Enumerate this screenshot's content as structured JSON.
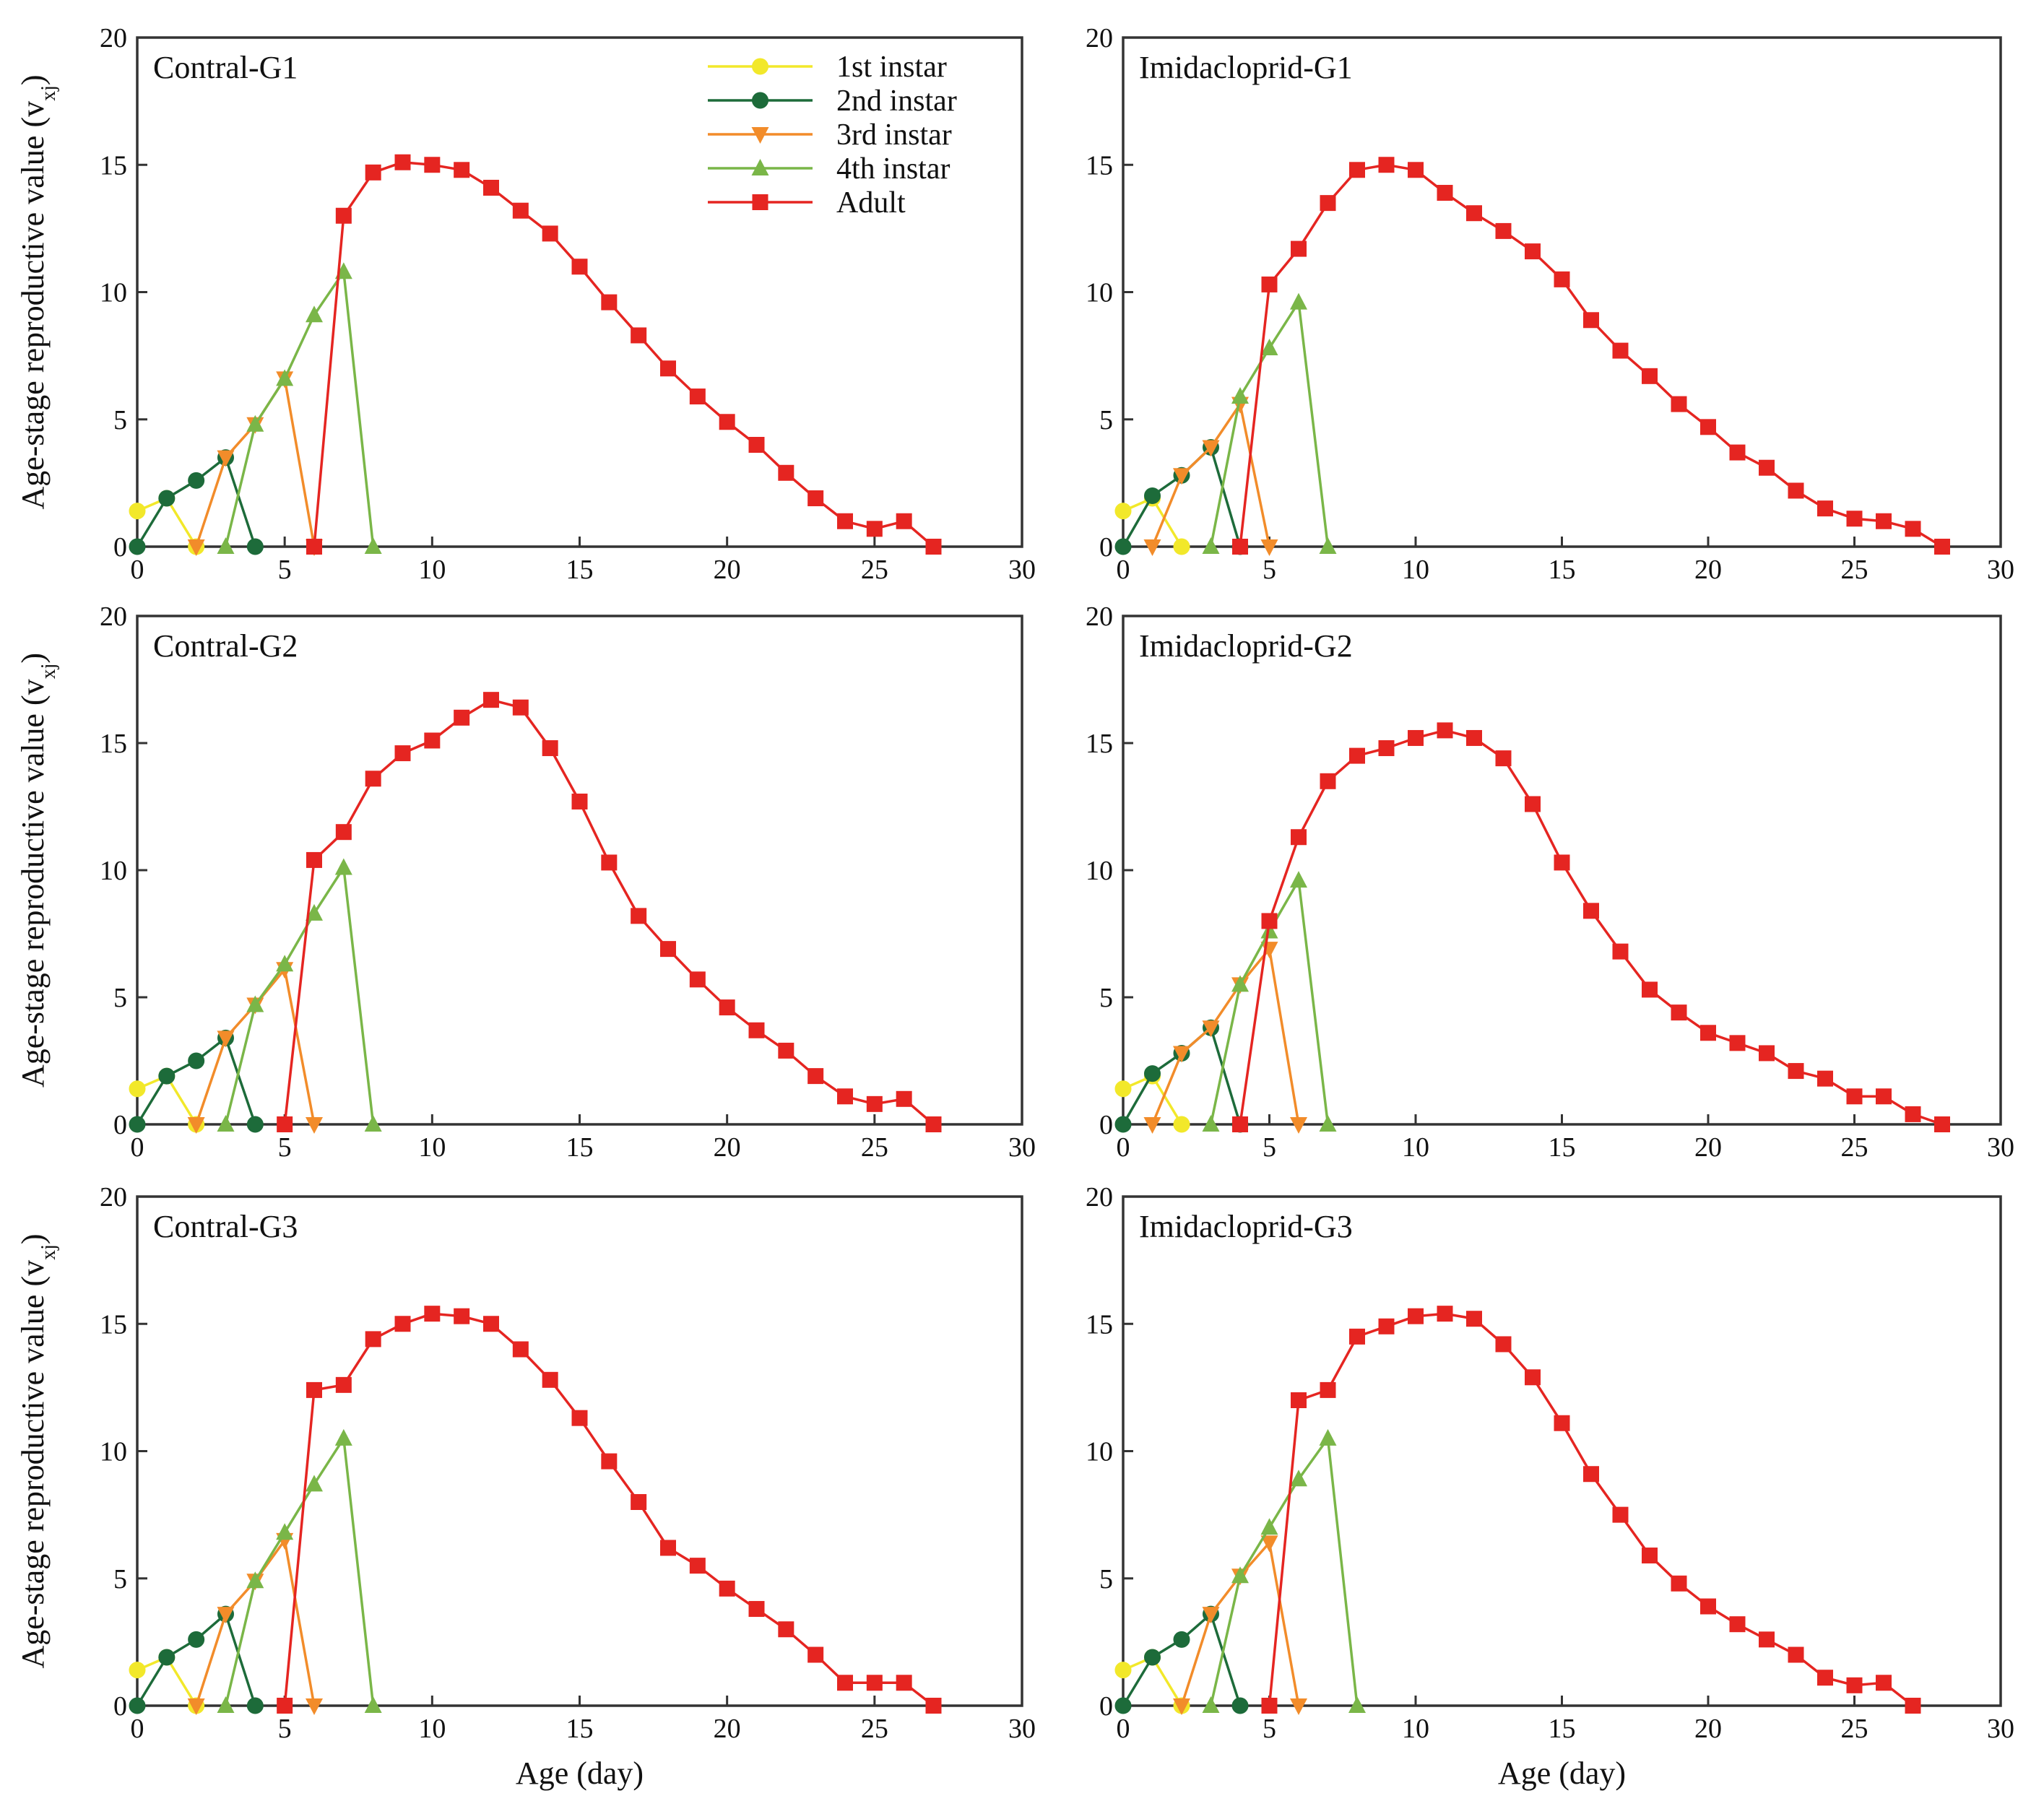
{
  "chart_data": {
    "type": "line",
    "ylabel": "Age-stage reproductive value (v",
    "ylabel_sub": "xj",
    "ylabel_close": ")",
    "xlabel": "Age (day)",
    "xlim": [
      0,
      30
    ],
    "ylim": [
      0,
      20
    ],
    "xticks": [
      0,
      5,
      10,
      15,
      20,
      25,
      30
    ],
    "yticks": [
      0,
      5,
      10,
      15,
      20
    ],
    "legend": {
      "position": "top-left",
      "entries": [
        {
          "label": "1st instar",
          "color": "#f2e82a",
          "marker": "circle"
        },
        {
          "label": "2nd instar",
          "color": "#1d6b3a",
          "marker": "circle"
        },
        {
          "label": "3rd instar",
          "color": "#f28c2a",
          "marker": "triangle-down"
        },
        {
          "label": "4th instar",
          "color": "#7ab648",
          "marker": "triangle-up"
        },
        {
          "label": "Adult",
          "color": "#e52521",
          "marker": "square"
        }
      ]
    },
    "panels": [
      {
        "title": "Contral-G1",
        "series": [
          {
            "name": "1st instar",
            "x": [
              0,
              1,
              2
            ],
            "y": [
              1.4,
              1.9,
              0
            ]
          },
          {
            "name": "2nd instar",
            "x": [
              0,
              1,
              2,
              3,
              4
            ],
            "y": [
              0,
              1.9,
              2.6,
              3.5,
              0
            ]
          },
          {
            "name": "3rd instar",
            "x": [
              2,
              3,
              4,
              5,
              6
            ],
            "y": [
              0,
              3.5,
              4.8,
              6.6,
              0
            ]
          },
          {
            "name": "4th instar",
            "x": [
              3,
              4,
              5,
              6,
              7,
              8
            ],
            "y": [
              0,
              4.8,
              6.6,
              9.1,
              10.8,
              0
            ]
          },
          {
            "name": "Adult",
            "x": [
              6,
              7,
              8,
              9,
              10,
              11,
              12,
              13,
              14,
              15,
              16,
              17,
              18,
              19,
              20,
              21,
              22,
              23,
              24,
              25,
              26,
              27
            ],
            "y": [
              0,
              13.0,
              14.7,
              15.1,
              15.0,
              14.8,
              14.1,
              13.2,
              12.3,
              11.0,
              9.6,
              8.3,
              7.0,
              5.9,
              4.9,
              4.0,
              2.9,
              1.9,
              1.0,
              0.7,
              1.0,
              0
            ]
          }
        ]
      },
      {
        "title": "Imidacloprid-G1",
        "series": [
          {
            "name": "1st instar",
            "x": [
              0,
              1,
              2
            ],
            "y": [
              1.4,
              1.9,
              0
            ]
          },
          {
            "name": "2nd instar",
            "x": [
              0,
              1,
              2,
              3,
              4
            ],
            "y": [
              0,
              2.0,
              2.8,
              3.9,
              0
            ]
          },
          {
            "name": "3rd instar",
            "x": [
              1,
              2,
              3,
              4,
              5
            ],
            "y": [
              0,
              2.8,
              3.9,
              5.6,
              0
            ]
          },
          {
            "name": "4th instar",
            "x": [
              3,
              4,
              5,
              6,
              7
            ],
            "y": [
              0,
              5.9,
              7.8,
              9.6,
              0
            ]
          },
          {
            "name": "Adult",
            "x": [
              4,
              5,
              6,
              7,
              8,
              9,
              10,
              11,
              12,
              13,
              14,
              15,
              16,
              17,
              18,
              19,
              20,
              21,
              22,
              23,
              24,
              25,
              26,
              27,
              28
            ],
            "y": [
              0,
              10.3,
              11.7,
              13.5,
              14.8,
              15.0,
              14.8,
              13.9,
              13.1,
              12.4,
              11.6,
              10.5,
              8.9,
              7.7,
              6.7,
              5.6,
              4.7,
              3.7,
              3.1,
              2.2,
              1.5,
              1.1,
              1.0,
              0.7,
              0
            ]
          }
        ]
      },
      {
        "title": "Contral-G2",
        "series": [
          {
            "name": "1st instar",
            "x": [
              0,
              1,
              2
            ],
            "y": [
              1.4,
              1.9,
              0
            ]
          },
          {
            "name": "2nd instar",
            "x": [
              0,
              1,
              2,
              3,
              4
            ],
            "y": [
              0,
              1.9,
              2.5,
              3.4,
              0
            ]
          },
          {
            "name": "3rd instar",
            "x": [
              2,
              3,
              4,
              5,
              6
            ],
            "y": [
              0,
              3.4,
              4.7,
              6.1,
              0
            ]
          },
          {
            "name": "4th instar",
            "x": [
              3,
              4,
              5,
              6,
              7,
              8
            ],
            "y": [
              0,
              4.7,
              6.3,
              8.3,
              10.1,
              0
            ]
          },
          {
            "name": "Adult",
            "x": [
              5,
              6,
              7,
              8,
              9,
              10,
              11,
              12,
              13,
              14,
              15,
              16,
              17,
              18,
              19,
              20,
              21,
              22,
              23,
              24,
              25,
              26,
              27
            ],
            "y": [
              0,
              10.4,
              11.5,
              13.6,
              14.6,
              15.1,
              16.0,
              16.7,
              16.4,
              14.8,
              12.7,
              10.3,
              8.2,
              6.9,
              5.7,
              4.6,
              3.7,
              2.9,
              1.9,
              1.1,
              0.8,
              1.0,
              0
            ]
          }
        ]
      },
      {
        "title": "Imidacloprid-G2",
        "series": [
          {
            "name": "1st instar",
            "x": [
              0,
              1,
              2
            ],
            "y": [
              1.4,
              1.9,
              0
            ]
          },
          {
            "name": "2nd instar",
            "x": [
              0,
              1,
              2,
              3,
              4
            ],
            "y": [
              0,
              2.0,
              2.8,
              3.8,
              0
            ]
          },
          {
            "name": "3rd instar",
            "x": [
              1,
              2,
              3,
              4,
              5,
              6
            ],
            "y": [
              0,
              2.8,
              3.8,
              5.5,
              6.9,
              0
            ]
          },
          {
            "name": "4th instar",
            "x": [
              3,
              4,
              5,
              6,
              7
            ],
            "y": [
              0,
              5.5,
              7.6,
              9.6,
              0
            ]
          },
          {
            "name": "Adult",
            "x": [
              4,
              5,
              6,
              7,
              8,
              9,
              10,
              11,
              12,
              13,
              14,
              15,
              16,
              17,
              18,
              19,
              20,
              21,
              22,
              23,
              24,
              25,
              26,
              27,
              28
            ],
            "y": [
              0,
              8.0,
              11.3,
              13.5,
              14.5,
              14.8,
              15.2,
              15.5,
              15.2,
              14.4,
              12.6,
              10.3,
              8.4,
              6.8,
              5.3,
              4.4,
              3.6,
              3.2,
              2.8,
              2.1,
              1.8,
              1.1,
              1.1,
              0.4,
              0
            ]
          }
        ]
      },
      {
        "title": "Contral-G3",
        "series": [
          {
            "name": "1st instar",
            "x": [
              0,
              1,
              2
            ],
            "y": [
              1.4,
              1.9,
              0
            ]
          },
          {
            "name": "2nd instar",
            "x": [
              0,
              1,
              2,
              3,
              4
            ],
            "y": [
              0,
              1.9,
              2.6,
              3.6,
              0
            ]
          },
          {
            "name": "3rd instar",
            "x": [
              2,
              3,
              4,
              5,
              6
            ],
            "y": [
              0,
              3.6,
              4.9,
              6.5,
              0
            ]
          },
          {
            "name": "4th instar",
            "x": [
              3,
              4,
              5,
              6,
              7,
              8
            ],
            "y": [
              0,
              4.9,
              6.8,
              8.7,
              10.5,
              0
            ]
          },
          {
            "name": "Adult",
            "x": [
              5,
              6,
              7,
              8,
              9,
              10,
              11,
              12,
              13,
              14,
              15,
              16,
              17,
              18,
              19,
              20,
              21,
              22,
              23,
              24,
              25,
              26,
              27
            ],
            "y": [
              0,
              12.4,
              12.6,
              14.4,
              15.0,
              15.4,
              15.3,
              15.0,
              14.0,
              12.8,
              11.3,
              9.6,
              8.0,
              6.2,
              5.5,
              4.6,
              3.8,
              3.0,
              2.0,
              0.9,
              0.9,
              0.9,
              0
            ]
          }
        ]
      },
      {
        "title": "Imidacloprid-G3",
        "series": [
          {
            "name": "1st instar",
            "x": [
              0,
              1,
              2
            ],
            "y": [
              1.4,
              1.9,
              0
            ]
          },
          {
            "name": "2nd instar",
            "x": [
              0,
              1,
              2,
              3,
              4
            ],
            "y": [
              0,
              1.9,
              2.6,
              3.6,
              0
            ]
          },
          {
            "name": "3rd instar",
            "x": [
              2,
              3,
              4,
              5,
              6
            ],
            "y": [
              0,
              3.6,
              5.1,
              6.4,
              0
            ]
          },
          {
            "name": "4th instar",
            "x": [
              3,
              4,
              5,
              6,
              7,
              8
            ],
            "y": [
              0,
              5.1,
              7.0,
              8.9,
              10.5,
              0
            ]
          },
          {
            "name": "Adult",
            "x": [
              5,
              6,
              7,
              8,
              9,
              10,
              11,
              12,
              13,
              14,
              15,
              16,
              17,
              18,
              19,
              20,
              21,
              22,
              23,
              24,
              25,
              26,
              27
            ],
            "y": [
              0,
              12.0,
              12.4,
              14.5,
              14.9,
              15.3,
              15.4,
              15.2,
              14.2,
              12.9,
              11.1,
              9.1,
              7.5,
              5.9,
              4.8,
              3.9,
              3.2,
              2.6,
              2.0,
              1.1,
              0.8,
              0.9,
              0
            ]
          }
        ]
      }
    ]
  }
}
